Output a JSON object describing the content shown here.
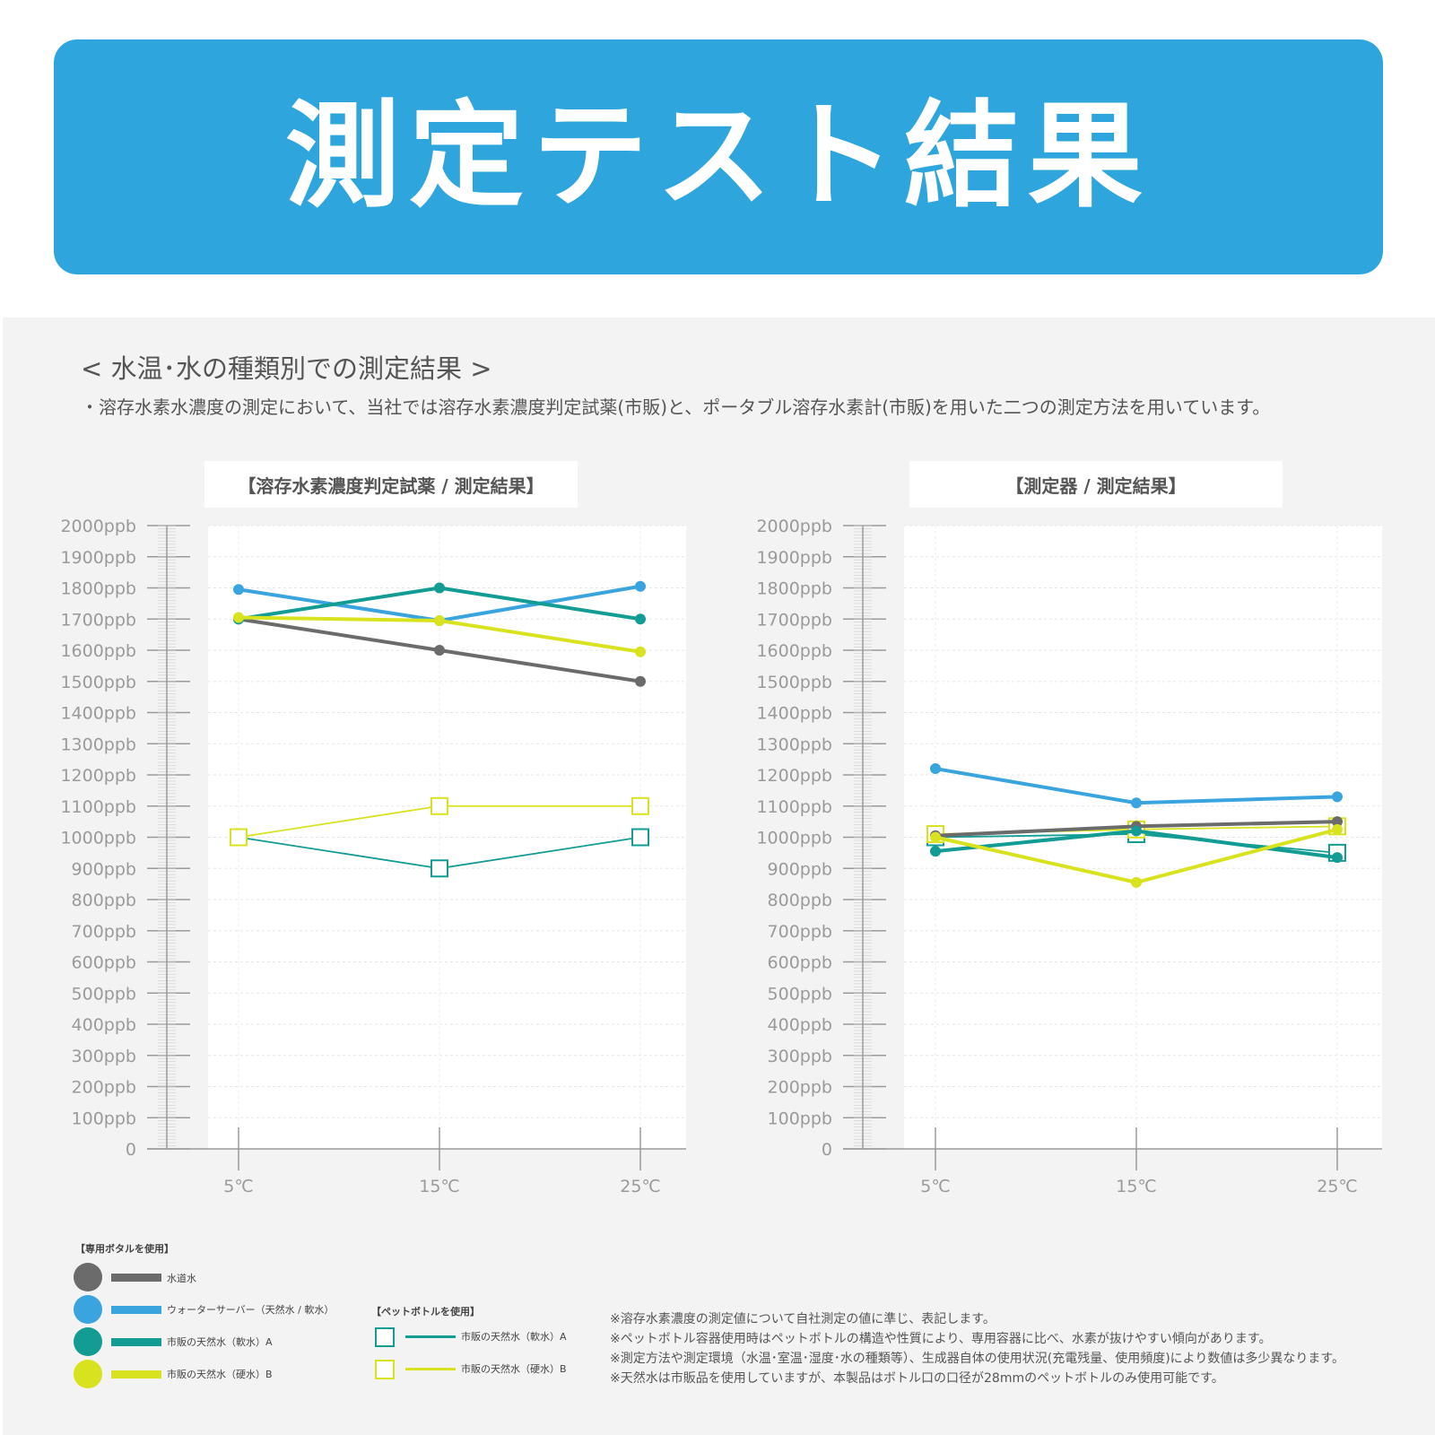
{
  "banner": {
    "title": "測定テスト結果"
  },
  "section": {
    "heading": "< 水温･水の種類別での測定結果 >",
    "description": "・溶存水素水濃度の測定において、当社では溶存水素濃度判定試薬(市販)と、ポータブル溶存水素計(市販)を用いた二つの測定方法を用いています。"
  },
  "colors": {
    "tap_water": "#6b6b6b",
    "water_server": "#3aa4de",
    "soft_water": "#129c94",
    "hard_water": "#d9e21e"
  },
  "chart_data": [
    {
      "type": "line",
      "title": "【溶存水素濃度判定試薬 / 測定結果】",
      "categories": [
        "5℃",
        "15℃",
        "25℃"
      ],
      "y_ticks": [
        "0",
        "100ppb",
        "200ppb",
        "300ppb",
        "400ppb",
        "500ppb",
        "600ppb",
        "700ppb",
        "800ppb",
        "900ppb",
        "1000ppb",
        "1100ppb",
        "1200ppb",
        "1300ppb",
        "1400ppb",
        "1500ppb",
        "1600ppb",
        "1700ppb",
        "1800ppb",
        "1900ppb",
        "2000ppb"
      ],
      "ylim": [
        0,
        2000
      ],
      "grid": true,
      "series": [
        {
          "name": "水道水",
          "group": "専用ボタルを使用",
          "marker": "circle",
          "color": "#6b6b6b",
          "values": [
            1700,
            1600,
            1500
          ]
        },
        {
          "name": "ウォーターサーバー（天然水 / 軟水）",
          "group": "専用ボタルを使用",
          "marker": "circle",
          "color": "#3aa4de",
          "values": [
            1795,
            1695,
            1805
          ]
        },
        {
          "name": "市販の天然水（軟水）A",
          "group": "専用ボタルを使用",
          "marker": "circle",
          "color": "#129c94",
          "values": [
            1700,
            1800,
            1700
          ]
        },
        {
          "name": "市販の天然水（硬水）B",
          "group": "専用ボタルを使用",
          "marker": "circle",
          "color": "#d9e21e",
          "values": [
            1705,
            1695,
            1595
          ]
        },
        {
          "name": "市販の天然水（軟水）A",
          "group": "ペットボトルを使用",
          "marker": "square",
          "color": "#129c94",
          "values": [
            1000,
            900,
            1000
          ]
        },
        {
          "name": "市販の天然水（硬水）B",
          "group": "ペットボトルを使用",
          "marker": "square",
          "color": "#d9e21e",
          "values": [
            1000,
            1100,
            1100
          ]
        }
      ]
    },
    {
      "type": "line",
      "title": "【測定器 / 測定結果】",
      "categories": [
        "5℃",
        "15℃",
        "25℃"
      ],
      "y_ticks": [
        "0",
        "100ppb",
        "200ppb",
        "300ppb",
        "400ppb",
        "500ppb",
        "600ppb",
        "700ppb",
        "800ppb",
        "900ppb",
        "1000ppb",
        "1100ppb",
        "1200ppb",
        "1300ppb",
        "1400ppb",
        "1500ppb",
        "1600ppb",
        "1700ppb",
        "1800ppb",
        "1900ppb",
        "2000ppb"
      ],
      "ylim": [
        0,
        2000
      ],
      "grid": true,
      "series": [
        {
          "name": "水道水",
          "group": "専用ボタルを使用",
          "marker": "circle",
          "color": "#6b6b6b",
          "values": [
            1005,
            1035,
            1050
          ]
        },
        {
          "name": "ウォーターサーバー（天然水 / 軟水）",
          "group": "専用ボタルを使用",
          "marker": "circle",
          "color": "#3aa4de",
          "values": [
            1220,
            1110,
            1130
          ]
        },
        {
          "name": "市販の天然水（軟水）A",
          "group": "専用ボタルを使用",
          "marker": "circle",
          "color": "#129c94",
          "values": [
            955,
            1020,
            935
          ]
        },
        {
          "name": "市販の天然水（硬水）B",
          "group": "専用ボタルを使用",
          "marker": "circle",
          "color": "#d9e21e",
          "values": [
            1000,
            855,
            1025
          ]
        },
        {
          "name": "市販の天然水（軟水）A",
          "group": "ペットボトルを使用",
          "marker": "square",
          "color": "#129c94",
          "values": [
            1000,
            1010,
            950
          ]
        },
        {
          "name": "市販の天然水（硬水）B",
          "group": "ペットボトルを使用",
          "marker": "square",
          "color": "#d9e21e",
          "values": [
            1010,
            1025,
            1035
          ]
        }
      ]
    }
  ],
  "legend": {
    "dedicated_heading": "【専用ボタルを使用】",
    "pet_heading": "【ペットボトルを使用】",
    "dedicated_items": [
      {
        "label": "水道水",
        "color": "#6b6b6b"
      },
      {
        "label": "ウォーターサーバー（天然水 / 軟水）",
        "color": "#3aa4de"
      },
      {
        "label": "市販の天然水（軟水）A",
        "color": "#129c94"
      },
      {
        "label": "市販の天然水（硬水）B",
        "color": "#d9e21e"
      }
    ],
    "pet_items": [
      {
        "label": "市販の天然水（軟水）A",
        "color": "#129c94"
      },
      {
        "label": "市販の天然水（硬水）B",
        "color": "#d9e21e"
      }
    ]
  },
  "notes": [
    "※溶存水素濃度の測定値について自社測定の値に準じ、表記します。",
    "※ペットボトル容器使用時はペットボトルの構造や性質により、専用容器に比べ、水素が抜けやすい傾向があります。",
    "※測定方法や測定環境（水温･室温･湿度･水の種類等）、生成器自体の使用状況(充電残量、使用頻度)により数値は多少異なります。",
    "※天然水は市販品を使用していますが、本製品はボトル口の口径が28mmのペットボトルのみ使用可能です。"
  ]
}
